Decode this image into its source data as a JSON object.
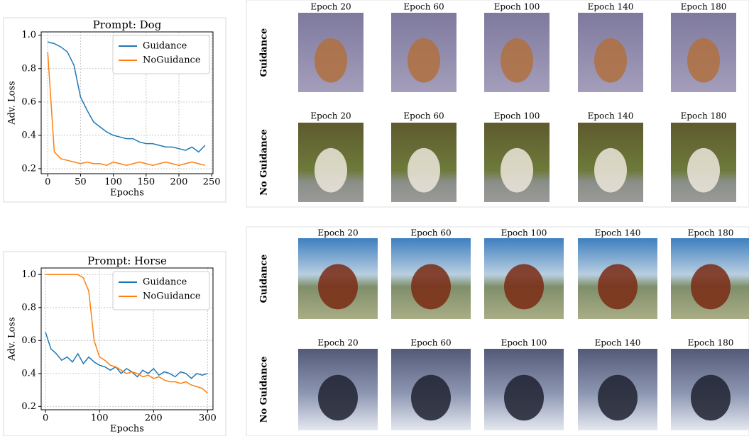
{
  "chart_data": [
    {
      "type": "line",
      "title": "Prompt: Dog",
      "x_label": "Epochs",
      "y_label": "Adv. Loss",
      "x": [
        0,
        10,
        20,
        30,
        40,
        50,
        60,
        70,
        80,
        90,
        100,
        110,
        120,
        130,
        140,
        150,
        160,
        170,
        180,
        190,
        200,
        210,
        220,
        230,
        240
      ],
      "series": [
        {
          "name": "Guidance",
          "color": "#1f77b4",
          "values": [
            0.96,
            0.95,
            0.93,
            0.9,
            0.82,
            0.63,
            0.55,
            0.48,
            0.45,
            0.42,
            0.4,
            0.39,
            0.38,
            0.38,
            0.36,
            0.35,
            0.35,
            0.34,
            0.33,
            0.33,
            0.32,
            0.31,
            0.33,
            0.3,
            0.34
          ]
        },
        {
          "name": "NoGuidance",
          "color": "#ff7f0e",
          "values": [
            0.9,
            0.3,
            0.26,
            0.25,
            0.24,
            0.23,
            0.24,
            0.23,
            0.23,
            0.22,
            0.24,
            0.23,
            0.22,
            0.23,
            0.24,
            0.23,
            0.22,
            0.23,
            0.24,
            0.23,
            0.22,
            0.23,
            0.24,
            0.23,
            0.22
          ]
        }
      ],
      "xlim": [
        -10,
        252
      ],
      "xticks": [
        0,
        50,
        100,
        150,
        200,
        250
      ],
      "ylim": [
        0.17,
        1.02
      ],
      "yticks": [
        0.2,
        0.4,
        0.6,
        0.8,
        {
          "value": 1,
          "label": "1.0"
        }
      ],
      "grid": true,
      "legend": "upper-right"
    },
    {
      "type": "line",
      "title": "Prompt: Horse",
      "x_label": "Epochs",
      "y_label": "Adv. Loss",
      "x": [
        0,
        10,
        20,
        30,
        40,
        50,
        60,
        70,
        80,
        90,
        100,
        110,
        120,
        130,
        140,
        150,
        160,
        170,
        180,
        190,
        200,
        210,
        220,
        230,
        240,
        250,
        260,
        270,
        280,
        290,
        300
      ],
      "series": [
        {
          "name": "Guidance",
          "color": "#1f77b4",
          "values": [
            0.65,
            0.55,
            0.52,
            0.48,
            0.5,
            0.47,
            0.52,
            0.46,
            0.5,
            0.47,
            0.45,
            0.44,
            0.42,
            0.44,
            0.4,
            0.43,
            0.41,
            0.38,
            0.42,
            0.4,
            0.43,
            0.39,
            0.41,
            0.4,
            0.38,
            0.41,
            0.4,
            0.37,
            0.4,
            0.39,
            0.4
          ]
        },
        {
          "name": "NoGuidance",
          "color": "#ff7f0e",
          "values": [
            1,
            1,
            1,
            1,
            1,
            1,
            1,
            0.98,
            0.9,
            0.6,
            0.5,
            0.48,
            0.45,
            0.44,
            0.42,
            0.4,
            0.41,
            0.4,
            0.38,
            0.39,
            0.37,
            0.38,
            0.36,
            0.35,
            0.35,
            0.34,
            0.35,
            0.33,
            0.32,
            0.31,
            0.28
          ]
        }
      ],
      "xlim": [
        -8,
        310
      ],
      "xticks": [
        0,
        100,
        200,
        300
      ],
      "ylim": [
        0.18,
        1.04
      ],
      "yticks": [
        0.2,
        0.4,
        0.6,
        0.8,
        {
          "value": 1,
          "label": "1.0"
        }
      ],
      "grid": true,
      "legend": "upper-right"
    }
  ],
  "image_grids": [
    {
      "rows": [
        {
          "label": "Guidance",
          "columns": [
            "Epoch 20",
            "Epoch 60",
            "Epoch 100",
            "Epoch 140",
            "Epoch 180"
          ]
        },
        {
          "label": "No Guidance",
          "columns": [
            "Epoch 20",
            "Epoch 60",
            "Epoch 100",
            "Epoch 140",
            "Epoch 180"
          ]
        }
      ]
    },
    {
      "rows": [
        {
          "label": "Guidance",
          "columns": [
            "Epoch 20",
            "Epoch 60",
            "Epoch 100",
            "Epoch 140",
            "Epoch 180"
          ]
        },
        {
          "label": "No Guidance",
          "columns": [
            "Epoch 20",
            "Epoch 60",
            "Epoch 100",
            "Epoch 140",
            "Epoch 180"
          ]
        }
      ]
    }
  ]
}
